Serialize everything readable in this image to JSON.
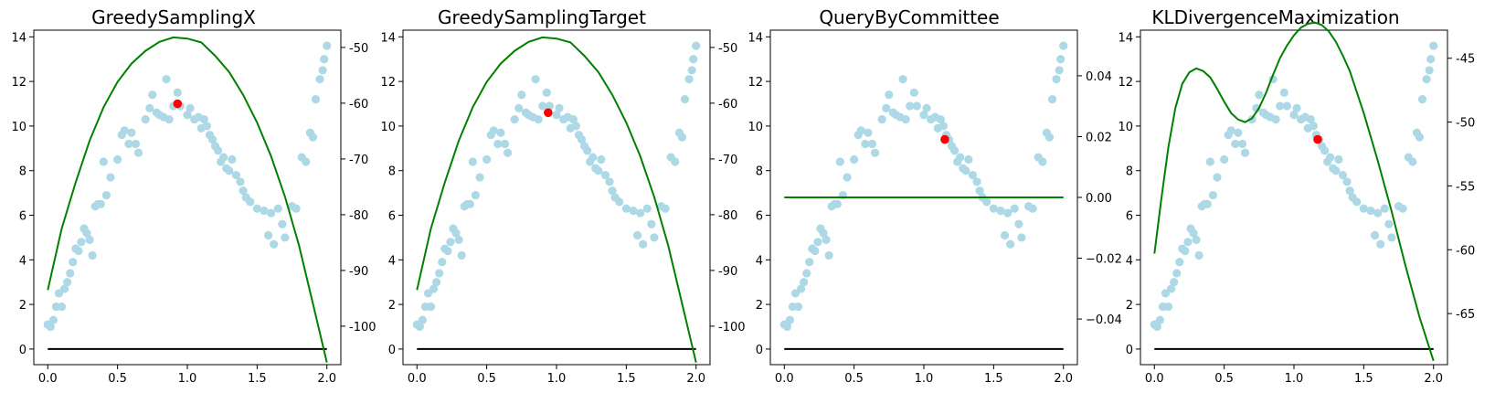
{
  "chart_data": [
    {
      "type": "scatter",
      "title": "GreedySamplingX",
      "xlim": [
        -0.1,
        2.1
      ],
      "ylim": [
        -0.7,
        14.3
      ],
      "xticks": [
        "0.0",
        "0.5",
        "1.0",
        "1.5",
        "2.0"
      ],
      "yticks": [
        "0",
        "2",
        "4",
        "6",
        "8",
        "10",
        "12",
        "14"
      ],
      "y2lim": [
        -106.9,
        -46.9
      ],
      "y2ticks": [
        "-100",
        "-90",
        "-80",
        "-70",
        "-60",
        "-50"
      ],
      "highlight": {
        "x": 0.93,
        "y": 11.0
      },
      "criterion_series": {
        "axis": "right",
        "color": "#008000",
        "x": [
          0.0,
          0.1,
          0.2,
          0.3,
          0.4,
          0.5,
          0.6,
          0.7,
          0.8,
          0.9,
          1.0,
          1.1,
          1.2,
          1.3,
          1.4,
          1.5,
          1.6,
          1.7,
          1.8,
          1.9,
          2.0
        ],
        "y": [
          -93.5,
          -82.5,
          -74.2,
          -66.7,
          -60.7,
          -56.2,
          -52.9,
          -50.6,
          -49.0,
          -48.2,
          -48.4,
          -49.1,
          -51.5,
          -54.4,
          -58.5,
          -63.5,
          -69.5,
          -76.8,
          -85.5,
          -96.0,
          -106.5
        ]
      }
    },
    {
      "type": "scatter",
      "title": "GreedySamplingTarget",
      "xlim": [
        -0.1,
        2.1
      ],
      "ylim": [
        -0.7,
        14.3
      ],
      "xticks": [
        "0.0",
        "0.5",
        "1.0",
        "1.5",
        "2.0"
      ],
      "yticks": [
        "0",
        "2",
        "4",
        "6",
        "8",
        "10",
        "12",
        "14"
      ],
      "y2lim": [
        -106.9,
        -46.9
      ],
      "y2ticks": [
        "-100",
        "-90",
        "-80",
        "-70",
        "-60",
        "-50"
      ],
      "highlight": {
        "x": 0.94,
        "y": 10.6
      },
      "criterion_series": {
        "axis": "right",
        "color": "#008000",
        "x": [
          0.0,
          0.1,
          0.2,
          0.3,
          0.4,
          0.5,
          0.6,
          0.7,
          0.8,
          0.9,
          1.0,
          1.1,
          1.2,
          1.3,
          1.4,
          1.5,
          1.6,
          1.7,
          1.8,
          1.9,
          2.0
        ],
        "y": [
          -93.5,
          -82.5,
          -74.2,
          -66.7,
          -60.7,
          -56.2,
          -52.9,
          -50.6,
          -49.0,
          -48.2,
          -48.4,
          -49.1,
          -51.5,
          -54.4,
          -58.5,
          -63.5,
          -69.5,
          -76.8,
          -85.5,
          -96.0,
          -106.5
        ]
      }
    },
    {
      "type": "scatter",
      "title": "QueryByCommittee",
      "xlim": [
        -0.1,
        2.1
      ],
      "ylim": [
        -0.7,
        14.3
      ],
      "xticks": [
        "0.0",
        "0.5",
        "1.0",
        "1.5",
        "2.0"
      ],
      "yticks": [
        "0",
        "2",
        "4",
        "6",
        "8",
        "10",
        "12",
        "14"
      ],
      "y2lim": [
        -0.055,
        0.055
      ],
      "y2ticks": [
        "−0.04",
        "−0.02",
        "0.00",
        "0.02",
        "0.04"
      ],
      "highlight": {
        "x": 1.15,
        "y": 9.4
      },
      "criterion_series": {
        "axis": "right",
        "color": "#008000",
        "x": [
          0.0,
          2.0
        ],
        "y": [
          0.0,
          0.0
        ]
      }
    },
    {
      "type": "scatter",
      "title": "KLDivergenceMaximization",
      "xlim": [
        -0.1,
        2.1
      ],
      "ylim": [
        -0.7,
        14.3
      ],
      "xticks": [
        "0.0",
        "0.5",
        "1.0",
        "1.5",
        "2.0"
      ],
      "yticks": [
        "0",
        "2",
        "4",
        "6",
        "8",
        "10",
        "12",
        "14"
      ],
      "y2lim": [
        -69.0,
        -42.8
      ],
      "y2ticks": [
        "-65",
        "-60",
        "-55",
        "-50",
        "-45"
      ],
      "highlight": {
        "x": 1.17,
        "y": 9.4
      },
      "criterion_series": {
        "axis": "right",
        "color": "#008000",
        "x": [
          0.0,
          0.05,
          0.1,
          0.15,
          0.2,
          0.25,
          0.3,
          0.35,
          0.4,
          0.45,
          0.5,
          0.55,
          0.6,
          0.65,
          0.7,
          0.75,
          0.8,
          0.85,
          0.9,
          0.95,
          1.0,
          1.05,
          1.1,
          1.15,
          1.2,
          1.25,
          1.3,
          1.35,
          1.4,
          1.5,
          1.6,
          1.7,
          1.8,
          1.9,
          2.0
        ],
        "y": [
          -60.3,
          -56.0,
          -52.0,
          -48.9,
          -47.0,
          -46.1,
          -45.8,
          -46.0,
          -46.5,
          -47.4,
          -48.4,
          -49.3,
          -49.8,
          -50.0,
          -49.7,
          -48.9,
          -47.7,
          -46.3,
          -45.0,
          -44.0,
          -43.2,
          -42.6,
          -42.3,
          -42.2,
          -42.4,
          -42.9,
          -43.7,
          -44.8,
          -46.0,
          -49.3,
          -53.0,
          -57.0,
          -61.3,
          -65.3,
          -68.7
        ]
      }
    }
  ],
  "shared_scatter": {
    "marker_color": "#add8e6",
    "highlight_color": "#ff0000",
    "x": [
      0.0,
      0.02,
      0.04,
      0.06,
      0.08,
      0.1,
      0.12,
      0.14,
      0.16,
      0.18,
      0.2,
      0.22,
      0.24,
      0.26,
      0.28,
      0.3,
      0.32,
      0.34,
      0.36,
      0.38,
      0.4,
      0.42,
      0.45,
      0.5,
      0.53,
      0.55,
      0.58,
      0.6,
      0.63,
      0.65,
      0.7,
      0.73,
      0.75,
      0.78,
      0.8,
      0.83,
      0.85,
      0.87,
      0.9,
      0.93,
      0.95,
      1.0,
      1.02,
      1.05,
      1.08,
      1.1,
      1.12,
      1.14,
      1.16,
      1.18,
      1.2,
      1.22,
      1.24,
      1.26,
      1.28,
      1.3,
      1.32,
      1.35,
      1.38,
      1.4,
      1.42,
      1.45,
      1.5,
      1.55,
      1.58,
      1.6,
      1.62,
      1.65,
      1.68,
      1.7,
      1.75,
      1.78,
      1.82,
      1.85,
      1.88,
      1.9,
      1.92,
      1.95,
      1.97,
      1.98,
      2.0
    ],
    "y": [
      1.1,
      1.0,
      1.3,
      1.9,
      2.5,
      1.9,
      2.7,
      3.0,
      3.4,
      3.9,
      4.5,
      4.4,
      4.8,
      5.4,
      5.2,
      4.9,
      4.2,
      6.4,
      6.5,
      6.5,
      8.4,
      6.9,
      7.7,
      8.5,
      9.6,
      9.8,
      9.2,
      9.7,
      9.2,
      8.8,
      10.3,
      10.8,
      11.4,
      10.6,
      10.5,
      10.4,
      12.1,
      10.3,
      10.9,
      11.5,
      10.9,
      10.5,
      10.8,
      10.3,
      10.4,
      9.9,
      10.3,
      10.0,
      9.6,
      9.4,
      9.1,
      8.9,
      8.4,
      8.6,
      8.1,
      8.0,
      8.5,
      7.8,
      7.5,
      7.1,
      6.8,
      6.6,
      6.3,
      6.2,
      5.1,
      6.1,
      4.7,
      6.3,
      5.6,
      5.0,
      6.4,
      6.3,
      8.6,
      8.4,
      9.7,
      9.5,
      11.2,
      12.1,
      12.5,
      13.0,
      13.6
    ]
  },
  "shared_baseline": {
    "color": "#000000",
    "x": [
      0.0,
      2.0
    ],
    "y": [
      0.0,
      0.0
    ]
  }
}
